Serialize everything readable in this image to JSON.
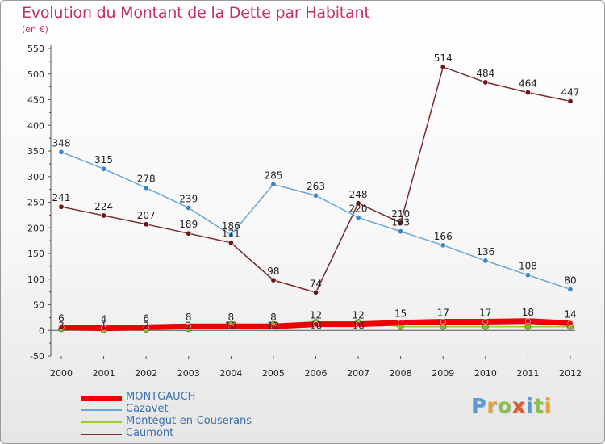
{
  "title": "Evolution du Montant de la Dette par Habitant",
  "subtitle": "(en €)",
  "brand": {
    "text": "Proxiti",
    "letter_colors": [
      "#5b9bd5",
      "#e8a33a",
      "#8cc04b",
      "#e4572e",
      "#5b9bd5",
      "#8cc04b",
      "#e8a33a"
    ]
  },
  "chart_data": {
    "type": "line",
    "title": "Evolution du Montant de la Dette par Habitant",
    "ylabel": "(en €)",
    "x": [
      2000,
      2001,
      2002,
      2003,
      2004,
      2005,
      2006,
      2007,
      2008,
      2009,
      2010,
      2011,
      2012
    ],
    "ylim": [
      -50,
      550
    ],
    "yticks": [
      -50,
      0,
      50,
      100,
      150,
      200,
      250,
      300,
      350,
      400,
      450,
      500,
      550
    ],
    "grid": false,
    "legend_position": "bottom-left",
    "series": [
      {
        "name": "MONTGAUCH",
        "color": "#ee0000",
        "width": 7,
        "marker_color": "#ee0000",
        "values": [
          6,
          4,
          6,
          8,
          8,
          8,
          12,
          12,
          15,
          17,
          17,
          18,
          14
        ],
        "labels": true
      },
      {
        "name": "Cazavet",
        "color": "#6aa6d8",
        "width": 1.5,
        "marker_color": "#3a86c8",
        "values": [
          348,
          315,
          278,
          239,
          186,
          285,
          263,
          220,
          193,
          166,
          136,
          108,
          80
        ],
        "labels": true
      },
      {
        "name": "Montégut-en-Couserans",
        "color": "#9acd32",
        "width": 1.5,
        "marker_color": "#7cc030",
        "values": [
          3,
          1,
          2,
          3,
          12,
          12,
          16,
          16,
          7,
          7,
          7,
          7,
          7
        ],
        "labels": false
      },
      {
        "name": "Caumont",
        "color": "#7a2a2a",
        "width": 1.5,
        "marker_color": "#6b1515",
        "values": [
          241,
          224,
          207,
          189,
          171,
          98,
          74,
          248,
          210,
          514,
          484,
          464,
          447
        ],
        "labels": true
      }
    ],
    "extra_labels": [
      {
        "x": 2000,
        "text": "3"
      },
      {
        "x": 2001,
        "text": "1"
      },
      {
        "x": 2002,
        "text": "2"
      },
      {
        "x": 2003,
        "text": "3"
      },
      {
        "x": 2004,
        "text": "12"
      },
      {
        "x": 2005,
        "text": "12"
      },
      {
        "x": 2006,
        "text": "16"
      },
      {
        "x": 2007,
        "text": "16"
      }
    ]
  }
}
